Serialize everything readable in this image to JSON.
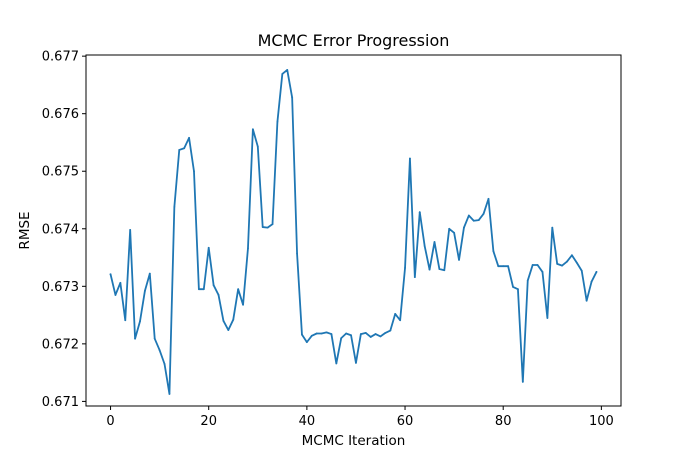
{
  "chart_data": {
    "type": "line",
    "title": "MCMC Error Progression",
    "xlabel": "MCMC Iteration",
    "ylabel": "RMSE",
    "xlim": [
      -5,
      104
    ],
    "ylim": [
      0.67092,
      0.67702
    ],
    "xticks": [
      0,
      20,
      40,
      60,
      80,
      100
    ],
    "yticks": [
      0.671,
      0.672,
      0.673,
      0.674,
      0.675,
      0.676,
      0.677
    ],
    "grid": false,
    "series": [
      {
        "color": "#1f77b4",
        "x": [
          0,
          1,
          2,
          3,
          4,
          5,
          6,
          7,
          8,
          9,
          10,
          11,
          12,
          13,
          14,
          15,
          16,
          17,
          18,
          19,
          20,
          21,
          22,
          23,
          24,
          25,
          26,
          27,
          28,
          29,
          30,
          31,
          32,
          33,
          34,
          35,
          36,
          37,
          38,
          39,
          40,
          41,
          42,
          43,
          44,
          45,
          46,
          47,
          48,
          49,
          50,
          51,
          52,
          53,
          54,
          55,
          56,
          57,
          58,
          59,
          60,
          61,
          62,
          63,
          64,
          65,
          66,
          67,
          68,
          69,
          70,
          71,
          72,
          73,
          74,
          75,
          76,
          77,
          78,
          79,
          80,
          81,
          82,
          83,
          84,
          85,
          86,
          87,
          88,
          89,
          90,
          91,
          92,
          93,
          94,
          95,
          96,
          97,
          98,
          99
        ],
        "y": [
          0.67321,
          0.67285,
          0.67306,
          0.67241,
          0.67398,
          0.67209,
          0.67239,
          0.67292,
          0.67322,
          0.67209,
          0.67189,
          0.67165,
          0.67113,
          0.67438,
          0.67537,
          0.6754,
          0.67558,
          0.675,
          0.67295,
          0.67295,
          0.67367,
          0.67302,
          0.67285,
          0.6724,
          0.67224,
          0.67242,
          0.67295,
          0.67268,
          0.67366,
          0.67573,
          0.67543,
          0.67403,
          0.67402,
          0.67408,
          0.67586,
          0.67669,
          0.67676,
          0.67628,
          0.67357,
          0.67216,
          0.67203,
          0.67214,
          0.67218,
          0.67218,
          0.6722,
          0.67217,
          0.67166,
          0.6721,
          0.67218,
          0.67215,
          0.67167,
          0.67217,
          0.67219,
          0.67212,
          0.67217,
          0.67213,
          0.67219,
          0.67223,
          0.67252,
          0.67241,
          0.67332,
          0.67522,
          0.67316,
          0.67429,
          0.6737,
          0.67329,
          0.67377,
          0.6733,
          0.67328,
          0.674,
          0.67393,
          0.67346,
          0.67402,
          0.67423,
          0.67414,
          0.67415,
          0.67426,
          0.67452,
          0.67361,
          0.67335,
          0.67335,
          0.67335,
          0.67299,
          0.67295,
          0.67134,
          0.6731,
          0.67337,
          0.67337,
          0.67325,
          0.67245,
          0.67402,
          0.67339,
          0.67336,
          0.67343,
          0.67354,
          0.67341,
          0.67327,
          0.67275,
          0.67308,
          0.67325
        ]
      }
    ]
  }
}
